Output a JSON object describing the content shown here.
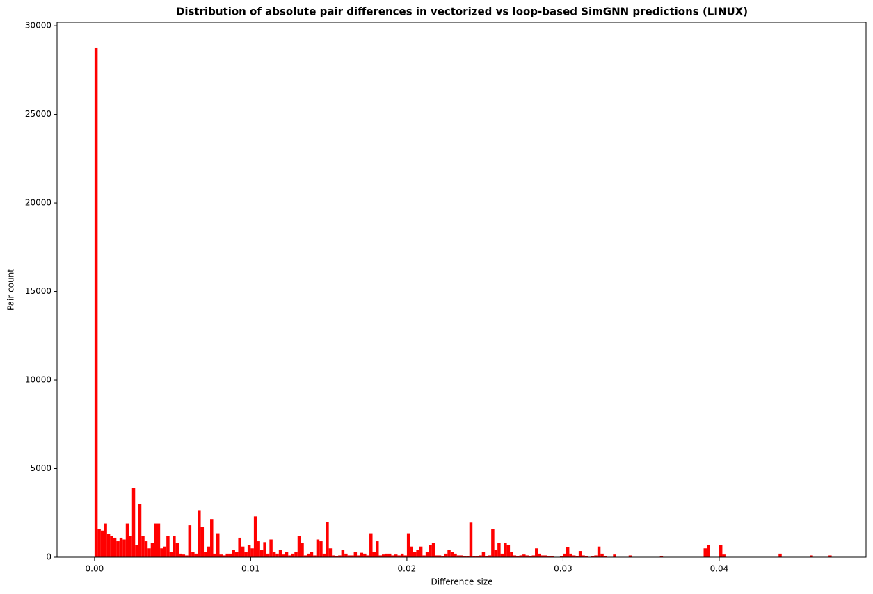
{
  "chart_data": {
    "type": "histogram",
    "title": "Distribution of absolute pair differences in vectorized vs loop-based SimGNN predictions (LINUX)",
    "x_label": "Difference size",
    "y_label": "Pair count",
    "color": "#ff0000",
    "grid": false,
    "xlim": [
      -0.0024,
      0.0494
    ],
    "ylim": [
      0,
      30200
    ],
    "xticks": [
      {
        "value": 0,
        "label": "0.00"
      },
      {
        "value": 0.01,
        "label": "0.01"
      },
      {
        "value": 0.02,
        "label": "0.02"
      },
      {
        "value": 0.03,
        "label": "0.03"
      },
      {
        "value": 0.04,
        "label": "0.04"
      }
    ],
    "yticks": [
      0,
      5000,
      10000,
      15000,
      20000,
      25000,
      30000
    ],
    "bins": [
      0,
      0.0002,
      0.0004,
      0.0006,
      0.0008,
      0.001,
      0.0012,
      0.0014,
      0.0016,
      0.0018,
      0.002,
      0.0022,
      0.0024,
      0.0026,
      0.0028,
      0.003,
      0.0032,
      0.0034,
      0.0036,
      0.0038,
      0.004,
      0.0042,
      0.0044,
      0.0046,
      0.0048,
      0.005,
      0.0052,
      0.0054,
      0.0056,
      0.0058,
      0.006,
      0.0062,
      0.0064,
      0.0066,
      0.0068,
      0.007,
      0.0072,
      0.0074,
      0.0076,
      0.0078,
      0.008,
      0.0082,
      0.0084,
      0.0086,
      0.0088,
      0.009,
      0.0092,
      0.0094,
      0.0096,
      0.0098,
      0.01,
      0.0102,
      0.0104,
      0.0106,
      0.0108,
      0.011,
      0.0112,
      0.0114,
      0.0116,
      0.0118,
      0.012,
      0.0122,
      0.0124,
      0.0126,
      0.0128,
      0.013,
      0.0132,
      0.0134,
      0.0136,
      0.0138,
      0.014,
      0.0142,
      0.0144,
      0.0146,
      0.0148,
      0.015,
      0.0152,
      0.0154,
      0.0156,
      0.0158,
      0.016,
      0.0162,
      0.0164,
      0.0166,
      0.0168,
      0.017,
      0.0172,
      0.0174,
      0.0176,
      0.0178,
      0.018,
      0.0182,
      0.0184,
      0.0186,
      0.0188,
      0.019,
      0.0192,
      0.0194,
      0.0196,
      0.0198,
      0.02,
      0.0202,
      0.0204,
      0.0206,
      0.0208,
      0.021,
      0.0212,
      0.0214,
      0.0216,
      0.0218,
      0.022,
      0.0222,
      0.0224,
      0.0226,
      0.0228,
      0.023,
      0.0232,
      0.0234,
      0.0236,
      0.0238,
      0.024,
      0.0242,
      0.0244,
      0.0246,
      0.0248,
      0.025,
      0.0252,
      0.0254,
      0.0256,
      0.0258,
      0.026,
      0.0262,
      0.0264,
      0.0266,
      0.0268,
      0.027,
      0.0272,
      0.0274,
      0.0276,
      0.0278,
      0.028,
      0.0282,
      0.0284,
      0.0286,
      0.0288,
      0.029,
      0.0292,
      0.0294,
      0.0296,
      0.0298,
      0.03,
      0.0302,
      0.0304,
      0.0306,
      0.0308,
      0.031,
      0.0312,
      0.0314,
      0.0316,
      0.0318,
      0.032,
      0.0322,
      0.0324,
      0.0326,
      0.0328,
      0.033,
      0.0332,
      0.0334,
      0.0336,
      0.0338,
      0.034,
      0.0342,
      0.0344,
      0.0346,
      0.0348,
      0.035,
      0.0352,
      0.0354,
      0.0356,
      0.0358,
      0.036,
      0.0362,
      0.0364,
      0.0366,
      0.0368,
      0.037,
      0.0372,
      0.0374,
      0.0376,
      0.0378,
      0.038,
      0.0382,
      0.0384,
      0.0386,
      0.0388,
      0.039,
      0.0392,
      0.0394,
      0.0396,
      0.0398,
      0.04,
      0.0402,
      0.0404,
      0.0406,
      0.0408,
      0.041,
      0.0412,
      0.0414,
      0.0416,
      0.0418,
      0.042,
      0.0422,
      0.0424,
      0.0426,
      0.0428,
      0.043,
      0.0432,
      0.0434,
      0.0436,
      0.0438,
      0.044,
      0.0442,
      0.0444,
      0.0446,
      0.0448,
      0.045,
      0.0452,
      0.0454,
      0.0456,
      0.0458,
      0.046,
      0.0462,
      0.0464,
      0.0466,
      0.0468,
      0.047,
      0.0472,
      0.0474,
      0.0476,
      0.0478,
      0.048
    ],
    "values": [
      28750,
      1600,
      1500,
      1900,
      1300,
      1200,
      1100,
      900,
      1100,
      1000,
      1900,
      1200,
      3900,
      700,
      3000,
      1200,
      900,
      500,
      800,
      1900,
      1900,
      500,
      600,
      1200,
      300,
      1200,
      800,
      200,
      150,
      100,
      1800,
      300,
      200,
      2650,
      1700,
      300,
      600,
      2150,
      200,
      1350,
      150,
      100,
      200,
      200,
      400,
      300,
      1100,
      600,
      300,
      700,
      500,
      2300,
      900,
      400,
      850,
      200,
      1000,
      300,
      200,
      400,
      150,
      300,
      100,
      200,
      300,
      1200,
      800,
      100,
      200,
      300,
      100,
      1000,
      900,
      200,
      2000,
      500,
      100,
      50,
      100,
      400,
      200,
      100,
      100,
      300,
      100,
      250,
      200,
      100,
      1350,
      300,
      900,
      100,
      150,
      200,
      200,
      100,
      150,
      100,
      200,
      100,
      1350,
      600,
      300,
      400,
      600,
      100,
      300,
      700,
      800,
      100,
      100,
      50,
      200,
      400,
      300,
      200,
      100,
      100,
      50,
      50,
      1950,
      50,
      50,
      100,
      300,
      50,
      100,
      1600,
      400,
      800,
      200,
      800,
      700,
      300,
      100,
      50,
      100,
      150,
      100,
      50,
      100,
      500,
      200,
      100,
      100,
      50,
      50,
      0,
      0,
      50,
      200,
      550,
      200,
      100,
      50,
      350,
      100,
      50,
      0,
      50,
      100,
      600,
      200,
      50,
      0,
      0,
      150,
      0,
      0,
      0,
      0,
      100,
      0,
      0,
      0,
      0,
      0,
      0,
      0,
      0,
      0,
      50,
      0,
      0,
      0,
      0,
      0,
      0,
      0,
      0,
      0,
      0,
      0,
      0,
      0,
      500,
      700,
      0,
      0,
      0,
      700,
      150,
      0,
      0,
      0,
      0,
      0,
      0,
      0,
      0,
      0,
      0,
      0,
      0,
      0,
      0,
      0,
      0,
      0,
      200,
      0,
      0,
      0,
      0,
      0,
      0,
      0,
      0,
      0,
      100,
      0,
      0,
      0,
      0,
      0,
      100,
      0,
      0,
      0,
      0
    ]
  }
}
